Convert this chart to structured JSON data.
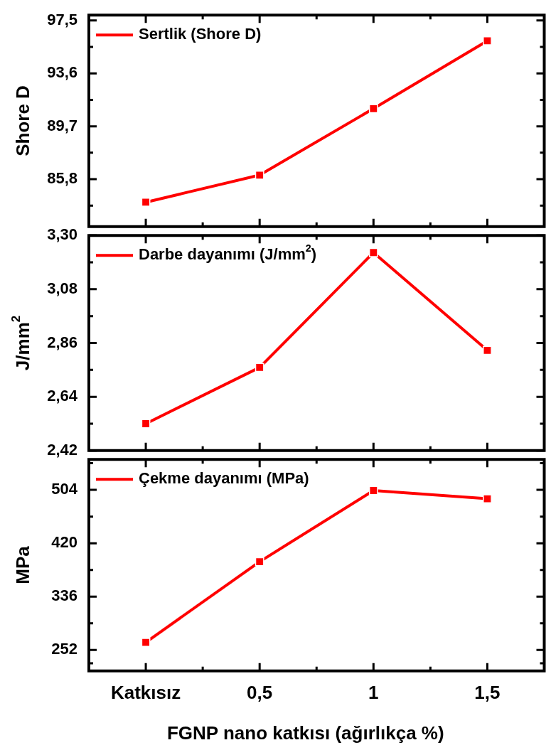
{
  "chart_data": [
    {
      "type": "line",
      "ylabel": "Shore D",
      "categories": [
        null,
        null,
        null,
        null
      ],
      "series": [
        {
          "name": "Sertlik (Shore D)",
          "color": "#ff0000",
          "values": [
            84.1,
            86.1,
            91.0,
            96.0
          ]
        }
      ],
      "ylim": [
        82.3,
        97.9
      ],
      "yticks": [
        {
          "value": 83.85,
          "label": null
        },
        {
          "value": 85.8,
          "label": "85,8"
        },
        {
          "value": 87.75,
          "label": null
        },
        {
          "value": 89.7,
          "label": "89,7"
        },
        {
          "value": 91.65,
          "label": null
        },
        {
          "value": 93.6,
          "label": "93,6"
        },
        {
          "value": 95.55,
          "label": null
        },
        {
          "value": 97.5,
          "label": "97,5"
        }
      ],
      "legend": "top left",
      "marker": "square",
      "line_style": "solid",
      "tick_labels": "y"
    },
    {
      "type": "line",
      "ylabel": "J/mm$^{2}$",
      "categories": [
        null,
        null,
        null,
        null
      ],
      "series": [
        {
          "name": "Darbe dayanımı (J/mm$^{2}$)",
          "color": "#ff0000",
          "values": [
            2.53,
            2.76,
            3.23,
            2.83
          ]
        }
      ],
      "ylim": [
        2.42,
        3.3
      ],
      "yticks": [
        {
          "value": 2.42,
          "label": "2,42"
        },
        {
          "value": 2.53,
          "label": null
        },
        {
          "value": 2.64,
          "label": "2,64"
        },
        {
          "value": 2.75,
          "label": null
        },
        {
          "value": 2.86,
          "label": "2,86"
        },
        {
          "value": 2.97,
          "label": null
        },
        {
          "value": 3.08,
          "label": "3,08"
        },
        {
          "value": 3.19,
          "label": null
        },
        {
          "value": 3.3,
          "label": "3,30"
        }
      ],
      "legend": "top left",
      "marker": "square",
      "line_style": "solid",
      "tick_labels": "y"
    },
    {
      "type": "line",
      "ylabel": "MPa",
      "xlabel": "FGNP nano katkısı (ağırlıkça %)",
      "categories": [
        "Katkısız",
        "0,5",
        "1",
        "1,5"
      ],
      "series": [
        {
          "name": "Çekme dayanımı (MPa)",
          "color": "#ff0000",
          "values": [
            264,
            391,
            503,
            490
          ]
        }
      ],
      "ylim": [
        219,
        552
      ],
      "yticks": [
        {
          "value": 231,
          "label": null
        },
        252,
        {
          "value": 294,
          "label": null
        },
        336,
        {
          "value": 378,
          "label": null
        },
        420,
        {
          "value": 462,
          "label": null
        },
        504,
        {
          "value": 546,
          "label": null
        }
      ],
      "legend": "top left",
      "marker": "square",
      "line_style": "solid"
    }
  ]
}
